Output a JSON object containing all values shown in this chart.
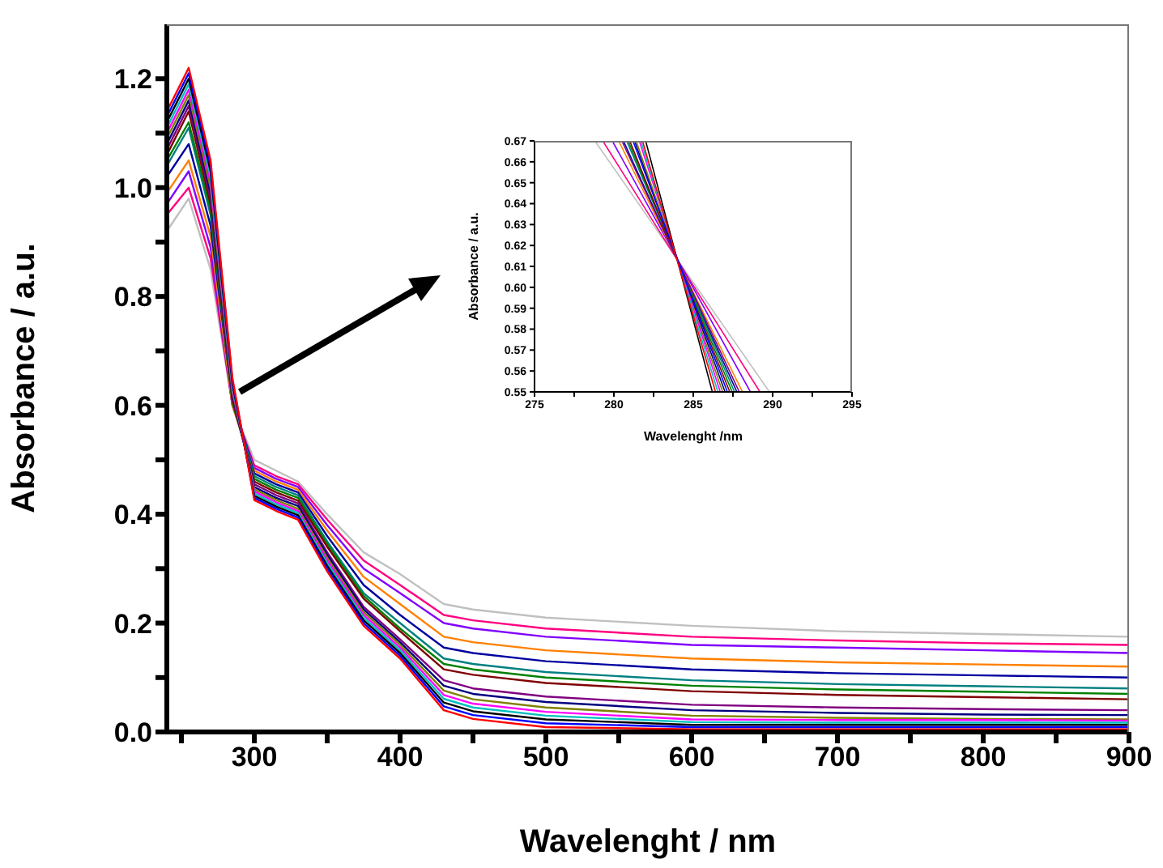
{
  "chart_data": [
    {
      "type": "line",
      "xlabel": "Wavelenght / nm",
      "ylabel": "Absorbance / a.u.",
      "x": [
        240,
        255,
        270,
        285,
        300,
        315,
        330,
        350,
        375,
        400,
        430,
        450,
        500,
        600,
        700,
        800,
        900
      ],
      "xlim": [
        240,
        900
      ],
      "xticks": [
        {
          "value": 250,
          "label": null
        },
        300,
        {
          "value": 350,
          "label": null
        },
        400,
        {
          "value": 450,
          "label": null
        },
        500,
        {
          "value": 550,
          "label": null
        },
        600,
        {
          "value": 650,
          "label": null
        },
        700,
        {
          "value": 750,
          "label": null
        },
        800,
        {
          "value": 850,
          "label": null
        },
        900
      ],
      "ylim": [
        0,
        1.3
      ],
      "yticks": [
        {
          "value": 0,
          "label": "0.0"
        },
        {
          "value": 0.1,
          "label": null
        },
        {
          "value": 0.2,
          "label": "0.2"
        },
        {
          "value": 0.3,
          "label": null
        },
        {
          "value": 0.4,
          "label": "0.4"
        },
        {
          "value": 0.5,
          "label": null
        },
        {
          "value": 0.6,
          "label": "0.6"
        },
        {
          "value": 0.7,
          "label": null
        },
        {
          "value": 0.8,
          "label": "0.8"
        },
        {
          "value": 0.9,
          "label": null
        },
        {
          "value": 1.0,
          "label": "1.0"
        },
        {
          "value": 1.1,
          "label": null
        },
        {
          "value": 1.2,
          "label": "1.2"
        }
      ],
      "series": [
        {
          "color": "#c0c0c0",
          "values": [
            0.92,
            0.98,
            0.85,
            0.6,
            0.5,
            0.48,
            0.46,
            0.4,
            0.33,
            0.29,
            0.235,
            0.225,
            0.21,
            0.195,
            0.185,
            0.18,
            0.175
          ]
        },
        {
          "color": "#ff0080",
          "values": [
            0.95,
            1.0,
            0.87,
            0.6,
            0.49,
            0.47,
            0.455,
            0.39,
            0.315,
            0.27,
            0.215,
            0.205,
            0.19,
            0.175,
            0.168,
            0.163,
            0.16
          ]
        },
        {
          "color": "#8000ff",
          "values": [
            0.97,
            1.03,
            0.89,
            0.6,
            0.485,
            0.465,
            0.45,
            0.38,
            0.3,
            0.255,
            0.2,
            0.19,
            0.175,
            0.16,
            0.155,
            0.15,
            0.145
          ]
        },
        {
          "color": "#ff8000",
          "values": [
            0.99,
            1.05,
            0.91,
            0.6,
            0.48,
            0.46,
            0.445,
            0.37,
            0.285,
            0.235,
            0.175,
            0.165,
            0.15,
            0.135,
            0.128,
            0.124,
            0.12
          ]
        },
        {
          "color": "#0000a0",
          "values": [
            1.02,
            1.08,
            0.93,
            0.61,
            0.475,
            0.455,
            0.44,
            0.36,
            0.27,
            0.215,
            0.155,
            0.145,
            0.13,
            0.115,
            0.108,
            0.104,
            0.1
          ]
        },
        {
          "color": "#008080",
          "values": [
            1.04,
            1.11,
            0.95,
            0.61,
            0.47,
            0.45,
            0.435,
            0.35,
            0.255,
            0.2,
            0.135,
            0.125,
            0.11,
            0.095,
            0.088,
            0.084,
            0.08
          ]
        },
        {
          "color": "#008000",
          "values": [
            1.05,
            1.12,
            0.96,
            0.605,
            0.465,
            0.445,
            0.43,
            0.345,
            0.25,
            0.19,
            0.125,
            0.115,
            0.1,
            0.085,
            0.078,
            0.074,
            0.07
          ]
        },
        {
          "color": "#800000",
          "values": [
            1.06,
            1.14,
            0.97,
            0.61,
            0.46,
            0.44,
            0.425,
            0.34,
            0.245,
            0.185,
            0.115,
            0.105,
            0.09,
            0.075,
            0.068,
            0.064,
            0.06
          ]
        },
        {
          "color": "#800080",
          "values": [
            1.07,
            1.15,
            0.98,
            0.615,
            0.455,
            0.435,
            0.42,
            0.33,
            0.23,
            0.17,
            0.095,
            0.08,
            0.065,
            0.05,
            0.045,
            0.042,
            0.04
          ]
        },
        {
          "color": "#000080",
          "values": [
            1.08,
            1.16,
            0.99,
            0.62,
            0.45,
            0.43,
            0.415,
            0.325,
            0.225,
            0.165,
            0.085,
            0.07,
            0.055,
            0.04,
            0.035,
            0.032,
            0.031
          ]
        },
        {
          "color": "#808000",
          "values": [
            1.09,
            1.17,
            1.0,
            0.625,
            0.446,
            0.426,
            0.41,
            0.32,
            0.22,
            0.16,
            0.076,
            0.06,
            0.045,
            0.03,
            0.026,
            0.024,
            0.023
          ]
        },
        {
          "color": "#ff00ff",
          "values": [
            1.1,
            1.18,
            1.01,
            0.63,
            0.442,
            0.422,
            0.406,
            0.315,
            0.215,
            0.155,
            0.068,
            0.052,
            0.037,
            0.023,
            0.022,
            0.022,
            0.021
          ]
        },
        {
          "color": "#00c0c0",
          "values": [
            1.11,
            1.19,
            1.02,
            0.635,
            0.438,
            0.418,
            0.402,
            0.31,
            0.21,
            0.15,
            0.061,
            0.045,
            0.03,
            0.018,
            0.017,
            0.017,
            0.017
          ]
        },
        {
          "color": "#000000",
          "values": [
            1.12,
            1.2,
            1.03,
            0.64,
            0.434,
            0.414,
            0.398,
            0.305,
            0.205,
            0.145,
            0.054,
            0.038,
            0.023,
            0.013,
            0.013,
            0.013,
            0.013
          ]
        },
        {
          "color": "#0000ff",
          "values": [
            1.13,
            1.21,
            1.04,
            0.645,
            0.43,
            0.41,
            0.394,
            0.3,
            0.2,
            0.14,
            0.047,
            0.031,
            0.016,
            0.009,
            0.009,
            0.009,
            0.009
          ]
        },
        {
          "color": "#ff0000",
          "values": [
            1.14,
            1.22,
            1.05,
            0.65,
            0.426,
            0.406,
            0.39,
            0.295,
            0.195,
            0.135,
            0.04,
            0.024,
            0.009,
            0.005,
            0.005,
            0.005,
            0.005
          ]
        }
      ]
    },
    {
      "type": "line",
      "xlabel": "Wavelenght /nm",
      "ylabel": "Absorbance / a.u.",
      "xlim": [
        275,
        295
      ],
      "xticks": [
        275,
        {
          "value": 277.5,
          "label": null
        },
        280,
        {
          "value": 282.5,
          "label": null
        },
        285,
        {
          "value": 287.5,
          "label": null
        },
        290,
        {
          "value": 292.5,
          "label": null
        },
        295
      ],
      "ylim": [
        0.55,
        0.67
      ],
      "yticks": [
        0.55,
        0.56,
        0.57,
        0.58,
        0.59,
        {
          "value": 0.6,
          "label": "0.60"
        },
        0.61,
        0.62,
        0.63,
        0.64,
        0.65,
        0.66,
        0.67
      ],
      "series": [
        {
          "color": "#c0c0c0",
          "x": [
            278.8,
            289.8
          ],
          "values": [
            0.67,
            0.55
          ]
        },
        {
          "color": "#ff0080",
          "x": [
            279.3,
            289.2
          ],
          "values": [
            0.67,
            0.55
          ]
        },
        {
          "color": "#8000ff",
          "x": [
            279.9,
            288.6
          ],
          "values": [
            0.67,
            0.55
          ]
        },
        {
          "color": "#ff8000",
          "x": [
            280.3,
            288.1
          ],
          "values": [
            0.67,
            0.55
          ]
        },
        {
          "color": "#0000a0",
          "x": [
            280.6,
            287.75
          ],
          "values": [
            0.67,
            0.55
          ]
        },
        {
          "color": "#008080",
          "x": [
            280.8,
            287.6
          ],
          "values": [
            0.67,
            0.55
          ]
        },
        {
          "color": "#008000",
          "x": [
            280.9,
            287.45
          ],
          "values": [
            0.67,
            0.55
          ]
        },
        {
          "color": "#800000",
          "x": [
            281.0,
            287.3
          ],
          "values": [
            0.67,
            0.55
          ]
        },
        {
          "color": "#800080",
          "x": [
            280.5,
            287.9
          ],
          "values": [
            0.67,
            0.55
          ]
        },
        {
          "color": "#000080",
          "x": [
            281.3,
            287.0
          ],
          "values": [
            0.67,
            0.55
          ]
        },
        {
          "color": "#808000",
          "x": [
            281.4,
            286.85
          ],
          "values": [
            0.67,
            0.55
          ]
        },
        {
          "color": "#ff00ff",
          "x": [
            281.6,
            286.7
          ],
          "values": [
            0.67,
            0.55
          ]
        },
        {
          "color": "#00c0c0",
          "x": [
            281.7,
            286.55
          ],
          "values": [
            0.67,
            0.55
          ]
        },
        {
          "color": "#000000",
          "x": [
            282.0,
            286.2
          ],
          "values": [
            0.67,
            0.55
          ]
        },
        {
          "color": "#0000ff",
          "x": [
            281.2,
            287.15
          ],
          "values": [
            0.67,
            0.55
          ]
        },
        {
          "color": "#ff0000",
          "x": [
            281.8,
            286.4
          ],
          "values": [
            0.67,
            0.55
          ]
        }
      ]
    }
  ]
}
